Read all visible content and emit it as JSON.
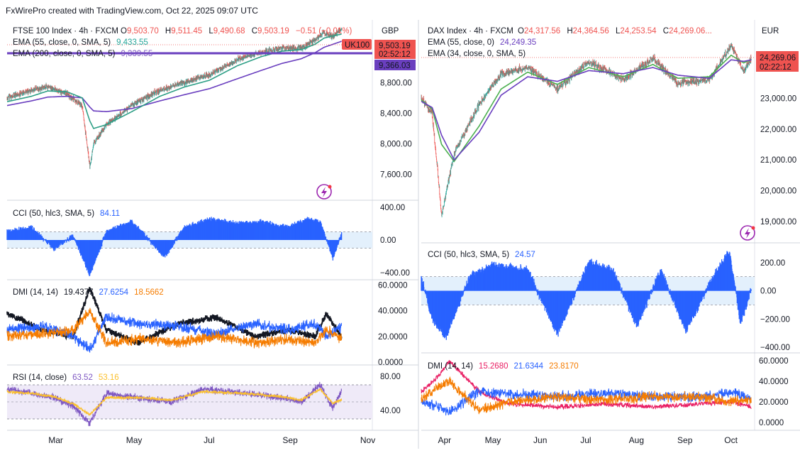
{
  "header": "FxWirePro created with TradingView.com, Oct 22, 2025 09:07 UTC",
  "colors": {
    "up": "#26a69a",
    "down": "#ef5350",
    "ema_green": "#2e9f86",
    "ema_purple": "#6a3fbf",
    "ema_light_green": "#4caf50",
    "cci": "#2962ff",
    "dmi_black": "#131722",
    "dmi_blue": "#2962ff",
    "dmi_orange": "#f57c00",
    "rsi": "#7e57c2",
    "rsi_ma": "#fbc02d",
    "dmi_red": "#e91e63"
  },
  "left": {
    "currency": "GBP",
    "legend_title": "FTSE 100 Index · 4h · FXCM",
    "ohlc": {
      "o_label": "O",
      "o": "9,503.70",
      "h_label": "H",
      "h": "9,511.45",
      "l_label": "L",
      "l": "9,490.68",
      "c_label": "C",
      "c": "9,503.19",
      "change": "−0.51 (−0.01%)"
    },
    "ema1_label": "EMA (55, close, 0, SMA, 5)",
    "ema1_value": "9,433.55",
    "ema2_label": "EMA (200, close, 0, SMA, 5)",
    "ema2_value": "9,339.55",
    "price_tag": "9,503.19",
    "countdown": "02:52:12",
    "symbol_tag": "UK100",
    "ema_tag": "9,366.03",
    "cci_label": "CCI (50, hlc3, SMA, 5)",
    "cci_value": "84.11",
    "dmi_label": "DMI (14, 14)",
    "dmi_values": [
      "19.4377",
      "27.6254",
      "18.5662"
    ],
    "rsi_label": "RSI (14, close)",
    "rsi_values": [
      "63.52",
      "53.16"
    ],
    "x_labels": [
      "Mar",
      "May",
      "Jul",
      "Sep",
      "Nov"
    ]
  },
  "right": {
    "currency": "EUR",
    "legend_title": "DAX Index · 4h · FXCM",
    "ohlc": {
      "o_label": "O",
      "o": "24,317.56",
      "h_label": "H",
      "h": "24,364.56",
      "l_label": "L",
      "l": "24,253.54",
      "c_label": "C",
      "c": "24,269.06..."
    },
    "ema1_label": "EMA (55, close, 0)",
    "ema1_value": "24,249.35",
    "ema2_label": "EMA (34, close, 0, SMA, 5)",
    "price_tag": "24,269.06",
    "countdown": "02:22:12",
    "cci_label": "CCI (50, hlc3, SMA, 5)",
    "cci_value": "24.57",
    "dmi_label": "DMI (14, 14)",
    "dmi_values": [
      "15.2680",
      "21.6344",
      "23.8170"
    ],
    "x_labels": [
      "Apr",
      "May",
      "Jun",
      "Jul",
      "Aug",
      "Sep",
      "Oct"
    ]
  },
  "chart_data": [
    {
      "type": "candlestick",
      "title": "FTSE 100 Index · 4h · FXCM",
      "panel": "left-price",
      "x_range": [
        "2025-02-01",
        "2025-11-15"
      ],
      "ylim": [
        7300,
        9600
      ],
      "y_ticks": [
        "8,800.00",
        "8,400.00",
        "8,000.00",
        "7,600.00"
      ],
      "y_tick_values": [
        8800,
        8400,
        8000,
        7600
      ],
      "anchors_date": [
        "2025-02-01",
        "2025-02-20",
        "2025-03-05",
        "2025-03-20",
        "2025-04-01",
        "2025-04-07",
        "2025-04-10",
        "2025-04-20",
        "2025-05-10",
        "2025-06-01",
        "2025-06-20",
        "2025-07-10",
        "2025-08-01",
        "2025-08-20",
        "2025-09-05",
        "2025-09-20",
        "2025-10-01",
        "2025-10-08",
        "2025-10-15",
        "2025-10-22"
      ],
      "anchors_close": [
        8600,
        8700,
        8750,
        8650,
        8500,
        7700,
        8000,
        8250,
        8500,
        8700,
        8800,
        8900,
        9100,
        9200,
        9250,
        9250,
        9350,
        9450,
        9400,
        9503
      ],
      "ema55": [
        8550,
        8620,
        8690,
        8680,
        8600,
        8300,
        8200,
        8250,
        8420,
        8620,
        8740,
        8830,
        9020,
        9140,
        9210,
        9230,
        9300,
        9380,
        9410,
        9433
      ],
      "ema200": [
        8500,
        8560,
        8610,
        8620,
        8600,
        8480,
        8430,
        8420,
        8460,
        8560,
        8640,
        8720,
        8850,
        8960,
        9050,
        9110,
        9190,
        9260,
        9300,
        9340
      ]
    },
    {
      "type": "bar",
      "title": "CCI (50, hlc3, SMA, 5)",
      "panel": "left-cci",
      "ylim": [
        -450,
        450
      ],
      "y_ticks": [
        "400.00",
        "0.00",
        "−400.00"
      ],
      "y_tick_values": [
        400,
        0,
        -400
      ],
      "bands": [
        100,
        -100
      ],
      "anchors_date": [
        "2025-02-01",
        "2025-02-20",
        "2025-03-10",
        "2025-03-25",
        "2025-04-07",
        "2025-04-20",
        "2025-05-10",
        "2025-06-05",
        "2025-06-20",
        "2025-07-10",
        "2025-08-01",
        "2025-08-20",
        "2025-09-10",
        "2025-09-25",
        "2025-10-05",
        "2025-10-15",
        "2025-10-22"
      ],
      "anchors_value": [
        100,
        150,
        -100,
        50,
        -420,
        100,
        220,
        -200,
        150,
        250,
        200,
        220,
        150,
        250,
        220,
        -220,
        84
      ]
    },
    {
      "type": "line",
      "title": "DMI (14, 14)",
      "panel": "left-dmi",
      "ylim": [
        0,
        62
      ],
      "y_ticks": [
        "60.0000",
        "40.0000",
        "20.0000",
        "0.0000"
      ],
      "y_tick_values": [
        60,
        40,
        20,
        0
      ],
      "anchors_date": [
        "2025-02-01",
        "2025-03-01",
        "2025-03-25",
        "2025-04-07",
        "2025-04-20",
        "2025-05-15",
        "2025-06-15",
        "2025-07-15",
        "2025-08-15",
        "2025-09-10",
        "2025-10-01",
        "2025-10-10",
        "2025-10-22"
      ],
      "series": [
        {
          "name": "ADX",
          "values": [
            38,
            25,
            20,
            58,
            25,
            15,
            30,
            35,
            20,
            25,
            20,
            38,
            19.44
          ]
        },
        {
          "name": "+DI",
          "values": [
            25,
            28,
            20,
            10,
            35,
            30,
            28,
            22,
            30,
            25,
            30,
            20,
            27.63
          ]
        },
        {
          "name": "−DI",
          "values": [
            20,
            22,
            25,
            40,
            15,
            18,
            15,
            20,
            15,
            18,
            15,
            25,
            18.57
          ]
        }
      ]
    },
    {
      "type": "line",
      "title": "RSI (14, close)",
      "panel": "left-rsi",
      "ylim": [
        20,
        90
      ],
      "y_ticks": [
        "80.00",
        "40.00"
      ],
      "y_tick_values": [
        80,
        40
      ],
      "bands": [
        70,
        30
      ],
      "anchors_date": [
        "2025-02-01",
        "2025-02-20",
        "2025-03-10",
        "2025-03-25",
        "2025-04-07",
        "2025-04-20",
        "2025-05-15",
        "2025-06-10",
        "2025-07-05",
        "2025-08-05",
        "2025-09-05",
        "2025-09-20",
        "2025-10-05",
        "2025-10-15",
        "2025-10-22"
      ],
      "series": [
        {
          "name": "RSI",
          "values": [
            65,
            60,
            55,
            45,
            25,
            60,
            55,
            50,
            65,
            60,
            55,
            50,
            70,
            42,
            63.52
          ]
        },
        {
          "name": "RSI-based MA",
          "values": [
            62,
            60,
            56,
            48,
            35,
            55,
            55,
            52,
            62,
            60,
            56,
            52,
            65,
            48,
            53.16
          ]
        }
      ]
    },
    {
      "type": "candlestick",
      "title": "DAX Index · 4h · FXCM",
      "panel": "right-price",
      "x_range": [
        "2025-03-25",
        "2025-10-24"
      ],
      "ylim": [
        18400,
        25500
      ],
      "y_ticks": [
        "23,000.00",
        "22,000.00",
        "21,000.00",
        "20,000.00",
        "19,000.00"
      ],
      "y_tick_values": [
        23000,
        22000,
        21000,
        20000,
        19000
      ],
      "anchors_date": [
        "2025-03-25",
        "2025-04-01",
        "2025-04-07",
        "2025-04-15",
        "2025-05-01",
        "2025-05-15",
        "2025-06-01",
        "2025-06-20",
        "2025-07-10",
        "2025-08-01",
        "2025-08-20",
        "2025-09-05",
        "2025-09-25",
        "2025-10-09",
        "2025-10-17",
        "2025-10-22"
      ],
      "anchors_close": [
        23000,
        22500,
        19200,
        21200,
        22800,
        23800,
        24000,
        23300,
        24200,
        23600,
        24300,
        23500,
        23600,
        24700,
        23900,
        24269
      ],
      "ema55": [
        22900,
        22700,
        21800,
        21000,
        21900,
        23100,
        23700,
        23550,
        23900,
        23800,
        24000,
        23750,
        23650,
        24250,
        24200,
        24249
      ],
      "ema34": [
        22950,
        22650,
        21500,
        20950,
        22100,
        23300,
        23850,
        23450,
        24000,
        23700,
        24100,
        23650,
        23700,
        24400,
        24150,
        24260
      ]
    },
    {
      "type": "bar",
      "title": "CCI (50, hlc3, SMA, 5)",
      "panel": "right-cci",
      "ylim": [
        -420,
        320
      ],
      "y_ticks": [
        "200.00",
        "0.00",
        "−200.00",
        "−400.00"
      ],
      "y_tick_values": [
        200,
        0,
        -200,
        -400
      ],
      "bands": [
        100,
        -100
      ],
      "anchors_date": [
        "2025-03-25",
        "2025-04-01",
        "2025-04-10",
        "2025-04-25",
        "2025-05-10",
        "2025-06-01",
        "2025-06-20",
        "2025-07-10",
        "2025-07-25",
        "2025-08-10",
        "2025-08-25",
        "2025-09-10",
        "2025-09-30",
        "2025-10-08",
        "2025-10-15",
        "2025-10-22"
      ],
      "anchors_value": [
        100,
        -200,
        -320,
        100,
        180,
        150,
        -300,
        200,
        150,
        -250,
        150,
        -280,
        150,
        280,
        -230,
        25
      ]
    },
    {
      "type": "line",
      "title": "DMI (14, 14)",
      "panel": "right-dmi",
      "ylim": [
        -5,
        65
      ],
      "y_ticks": [
        "60.0000",
        "40.0000",
        "20.0000",
        "0.0000"
      ],
      "y_tick_values": [
        60,
        40,
        20,
        0
      ],
      "anchors_date": [
        "2025-03-25",
        "2025-04-05",
        "2025-04-12",
        "2025-05-01",
        "2025-05-20",
        "2025-06-20",
        "2025-07-20",
        "2025-08-20",
        "2025-09-20",
        "2025-10-10",
        "2025-10-22"
      ],
      "series": [
        {
          "name": "ADX",
          "values": [
            30,
            45,
            60,
            30,
            18,
            15,
            18,
            15,
            18,
            20,
            15.27
          ]
        },
        {
          "name": "+DI",
          "values": [
            20,
            15,
            10,
            30,
            28,
            25,
            28,
            25,
            25,
            30,
            21.63
          ]
        },
        {
          "name": "−DI",
          "values": [
            22,
            35,
            40,
            12,
            20,
            25,
            22,
            25,
            25,
            20,
            23.82
          ]
        }
      ]
    }
  ]
}
